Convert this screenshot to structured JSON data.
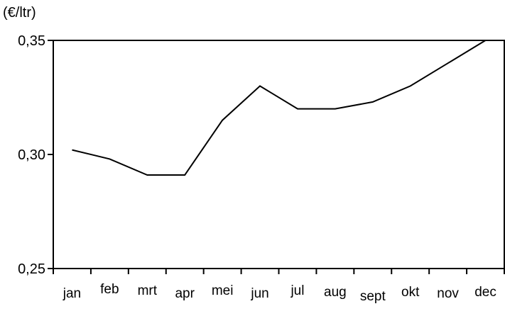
{
  "chart_data": {
    "type": "line",
    "ylabel": "(€/ltr)",
    "xlabel": "",
    "categories": [
      "jan",
      "feb",
      "mrt",
      "apr",
      "mei",
      "jun",
      "jul",
      "aug",
      "sept",
      "okt",
      "nov",
      "dec"
    ],
    "series": [
      {
        "values": [
          0.302,
          0.298,
          0.291,
          0.291,
          0.315,
          0.33,
          0.32,
          0.32,
          0.323,
          0.33,
          0.34,
          0.35
        ]
      }
    ],
    "ylim": [
      0.25,
      0.35
    ],
    "yticks": [
      0.25,
      0.3,
      0.35
    ],
    "ytick_labels": [
      "0,25",
      "0,30",
      "0,35"
    ],
    "grid": false,
    "line_color": "#000000"
  }
}
